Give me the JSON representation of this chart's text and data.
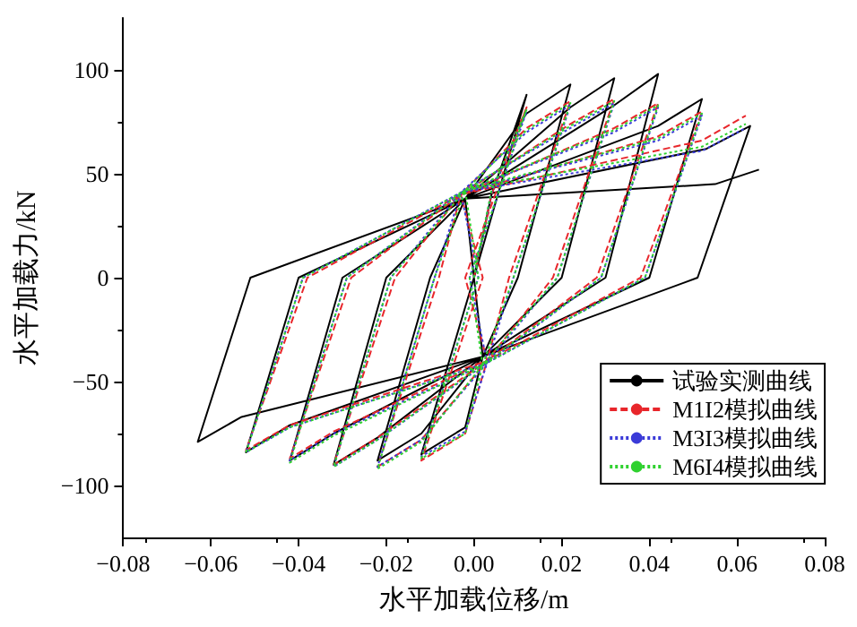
{
  "chart_data": {
    "type": "line",
    "xlabel": "水平加载位移/m",
    "ylabel": "水平加载力/kN",
    "xlim": [
      -0.08,
      0.08
    ],
    "xticks": [
      {
        "value": -0.08,
        "label": "−0.08"
      },
      {
        "value": -0.06,
        "label": "−0.06"
      },
      {
        "value": -0.04,
        "label": "−0.04"
      },
      {
        "value": -0.02,
        "label": "−0.02"
      },
      {
        "value": 0,
        "label": "0.00"
      },
      {
        "value": 0.02,
        "label": "0.02"
      },
      {
        "value": 0.04,
        "label": "0.04"
      },
      {
        "value": 0.06,
        "label": "0.06"
      },
      {
        "value": 0.08,
        "label": "0.08"
      }
    ],
    "ylim": [
      -125,
      125
    ],
    "yticks": [
      {
        "value": -100,
        "label": "−100"
      },
      {
        "value": -50,
        "label": "−50"
      },
      0,
      50,
      100
    ],
    "grid": false,
    "legend": "bottom right",
    "marker": "none",
    "series": [
      {
        "name": "试验实测曲线",
        "color": "#000000",
        "line_style": "solid",
        "x": [
          0,
          0.004,
          0.012,
          0,
          0.002,
          -0.002,
          -0.012,
          0,
          -0.002,
          0.012,
          0.022,
          0.01,
          0.002,
          -0.012,
          -0.022,
          -0.01,
          -0.002,
          0.022,
          0.032,
          0.02,
          0.002,
          -0.022,
          -0.032,
          -0.02,
          -0.002,
          0.032,
          0.042,
          0.03,
          0.002,
          -0.032,
          -0.042,
          -0.03,
          -0.002,
          0.042,
          0.052,
          0.04,
          0.002,
          -0.042,
          -0.052,
          -0.04,
          -0.002,
          0.053,
          0.063,
          0.051,
          0.002,
          -0.053,
          -0.063,
          -0.051,
          -0.002,
          0.055,
          0.065
        ],
        "values": [
          0,
          40,
          88,
          0,
          -38,
          -72,
          -85,
          0,
          38,
          79,
          93,
          0,
          -38,
          -75,
          -88,
          0,
          38,
          82,
          96,
          0,
          -38,
          -77,
          -90,
          0,
          38,
          83,
          98,
          0,
          -38,
          -75,
          -88,
          0,
          38,
          73,
          86,
          0,
          -38,
          -71,
          -84,
          0,
          38,
          62,
          73,
          0,
          -38,
          -67,
          -79,
          0,
          38,
          45,
          52
        ]
      },
      {
        "name": "M1I2模拟曲线",
        "color": "#e8262b",
        "line_style": "dashed",
        "x": [
          0,
          0.004,
          0.012,
          -0.002,
          0.003,
          -0.002,
          -0.012,
          0.002,
          -0.003,
          0.012,
          0.022,
          0.008,
          0.003,
          -0.012,
          -0.022,
          -0.008,
          -0.003,
          0.022,
          0.032,
          0.018,
          0.003,
          -0.022,
          -0.032,
          -0.018,
          -0.003,
          0.032,
          0.042,
          0.028,
          0.003,
          -0.032,
          -0.042,
          -0.028,
          -0.003,
          0.042,
          0.052,
          0.038,
          0.003,
          -0.042,
          -0.052,
          -0.038,
          -0.003,
          0.052,
          0.062
        ],
        "values": [
          0,
          40,
          82,
          0,
          -40,
          -75,
          -88,
          0,
          40,
          72,
          85,
          0,
          -40,
          -78,
          -91,
          0,
          40,
          74,
          86,
          0,
          -40,
          -77,
          -90,
          0,
          40,
          72,
          84,
          0,
          -40,
          -74,
          -87,
          0,
          40,
          68,
          80,
          0,
          -40,
          -71,
          -83,
          0,
          40,
          66,
          78
        ]
      },
      {
        "name": "M3I3模拟曲线",
        "color": "#3b3bd8",
        "line_style": "dotted",
        "x": [
          0,
          0.004,
          0.012,
          -0.001,
          0.003,
          -0.002,
          -0.012,
          0.001,
          -0.003,
          0.012,
          0.022,
          0.009,
          0.003,
          -0.012,
          -0.022,
          -0.009,
          -0.003,
          0.022,
          0.032,
          0.019,
          0.003,
          -0.022,
          -0.032,
          -0.019,
          -0.003,
          0.032,
          0.042,
          0.029,
          0.003,
          -0.032,
          -0.042,
          -0.029,
          -0.003,
          0.042,
          0.052,
          0.039,
          0.003,
          -0.042,
          -0.052,
          -0.039,
          -0.003,
          0.052,
          0.062
        ],
        "values": [
          0,
          41,
          80,
          0,
          -41,
          -74,
          -86,
          0,
          41,
          70,
          83,
          0,
          -41,
          -78,
          -91,
          0,
          41,
          72,
          84,
          0,
          -41,
          -78,
          -91,
          0,
          41,
          70,
          82,
          0,
          -41,
          -75,
          -88,
          0,
          41,
          66,
          78,
          0,
          -41,
          -72,
          -84,
          0,
          41,
          61,
          72
        ]
      },
      {
        "name": "M6I4模拟曲线",
        "color": "#2fd12f",
        "line_style": "dotted",
        "x": [
          0,
          0.004,
          0.012,
          -0.001,
          0.002,
          -0.002,
          -0.012,
          0.001,
          -0.002,
          0.012,
          0.022,
          0.009,
          0.002,
          -0.012,
          -0.022,
          -0.009,
          -0.002,
          0.022,
          0.032,
          0.019,
          0.002,
          -0.022,
          -0.032,
          -0.019,
          -0.002,
          0.032,
          0.042,
          0.029,
          0.002,
          -0.032,
          -0.042,
          -0.029,
          -0.002,
          0.042,
          0.052,
          0.039,
          0.002,
          -0.042,
          -0.052,
          -0.039,
          -0.002,
          0.052,
          0.062
        ],
        "values": [
          0,
          42,
          81,
          0,
          -42,
          -75,
          -87,
          0,
          42,
          71,
          84,
          0,
          -42,
          -79,
          -92,
          0,
          42,
          73,
          85,
          0,
          -42,
          -78,
          -91,
          0,
          42,
          71,
          83,
          0,
          -42,
          -76,
          -89,
          0,
          42,
          67,
          79,
          0,
          -42,
          -72,
          -84,
          0,
          42,
          63,
          74
        ]
      }
    ]
  }
}
